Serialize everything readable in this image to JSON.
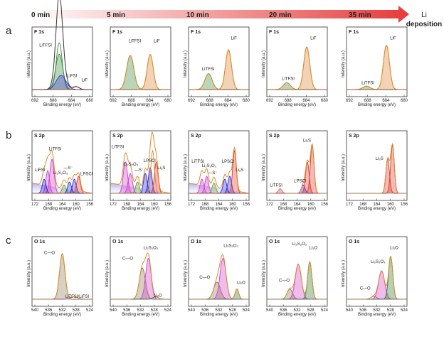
{
  "time_labels": [
    "0 min",
    "5 min",
    "10 min",
    "20 min",
    "35 min"
  ],
  "arrow_end": {
    "line1": "Li",
    "line2": "deposition"
  },
  "axes": {
    "ylabel": "Intensity (a.u.)",
    "xlabel": "Binding energy (eV)"
  },
  "rows": [
    {
      "letter": "a",
      "region": "F 1s",
      "xticks": [
        "692",
        "688",
        "684",
        "680"
      ],
      "panels": [
        {
          "time": "0 min",
          "labels": [
            "LiTFSI",
            "LiFSI",
            "LiF"
          ]
        },
        {
          "time": "5 min",
          "labels": [
            "LiTFSI",
            "LiF"
          ]
        },
        {
          "time": "10 min",
          "labels": [
            "LiTFSI",
            "LiF"
          ]
        },
        {
          "time": "20 min",
          "labels": [
            "LiTFSI",
            "LiF"
          ]
        },
        {
          "time": "35 min",
          "labels": [
            "LiTFSI",
            "LiF"
          ]
        }
      ]
    },
    {
      "letter": "b",
      "region": "S 2p",
      "xticks": [
        "172",
        "168",
        "164",
        "160",
        "156"
      ],
      "panels": [
        {
          "time": "0 min",
          "labels": [
            "LiTFSI",
            "LiFSI",
            "Li₂S₂O₃",
            "—S⁻",
            "LPSCl"
          ]
        },
        {
          "time": "5 min",
          "labels": [
            "LiTFSI",
            "Li₂S₂O₃",
            "—S⁻",
            "LPSCl",
            "Li₂S"
          ]
        },
        {
          "time": "10 min",
          "labels": [
            "LiTFSI",
            "Li₂S₂O₃",
            "—S⁻",
            "LPSCl",
            "Li₂S"
          ]
        },
        {
          "time": "20 min",
          "labels": [
            "LiTFSI",
            "LPSCl",
            "Li₂S"
          ]
        },
        {
          "time": "35 min",
          "labels": [
            "Li₂S"
          ]
        }
      ]
    },
    {
      "letter": "c",
      "region": "O 1s",
      "xticks": [
        "540",
        "536",
        "532",
        "528",
        "524"
      ],
      "panels": [
        {
          "time": "0 min",
          "labels": [
            "C—O",
            "LiTFSI/LiFSI"
          ]
        },
        {
          "time": "5 min",
          "labels": [
            "C—O",
            "Li₂S₂O₃",
            "Li₂O"
          ]
        },
        {
          "time": "10 min",
          "labels": [
            "C—O",
            "Li₂S₂O₃",
            "Li₂O"
          ]
        },
        {
          "time": "20 min",
          "labels": [
            "C—O",
            "Li₂S₂O₃",
            "Li₂O"
          ]
        },
        {
          "time": "35 min",
          "labels": [
            "C—O",
            "Li₂S₂O₃",
            "Li₂O"
          ]
        }
      ]
    }
  ],
  "colors": {
    "LiTFSI": "#3a8a3a",
    "LiFSI": "#3a3ad0",
    "LiF": "#d9822b",
    "envelope": "#d98c2b",
    "raw": "#555555",
    "Li2S2O3": "#d040c8",
    "S_minus": "#6a9a40",
    "LPSCl": "#2a2ad0",
    "Li2S": "#e03a2a",
    "CO": "#8a7a50",
    "Li2O": "#2a7a2a",
    "background": "#8080e0"
  }
}
